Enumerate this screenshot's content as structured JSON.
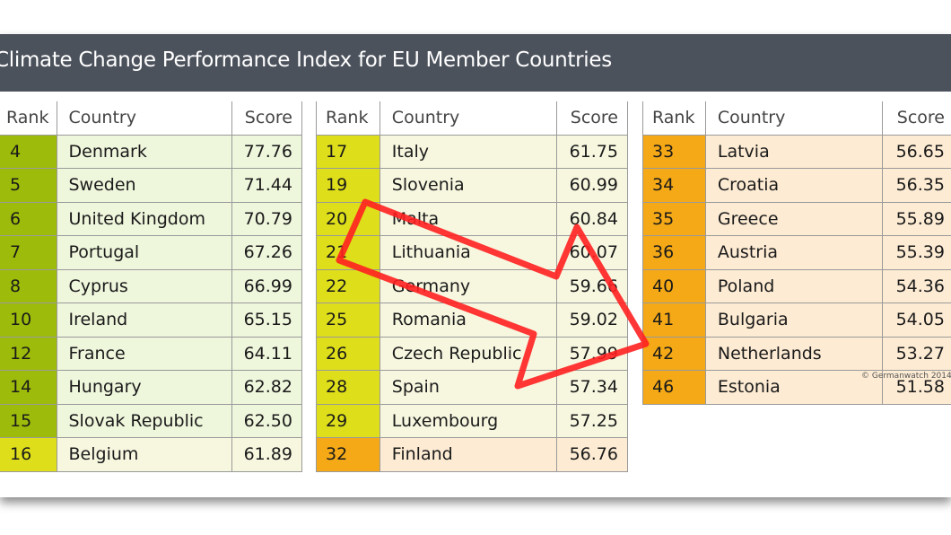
{
  "title": "Climate Change Performance Index for EU Member Countries",
  "headers": {
    "rank": "Rank",
    "country": "Country",
    "score": "Score"
  },
  "colors": {
    "title_bg": "#4c525c",
    "green": "#9dbb0a",
    "green_bg": "#eef6dc",
    "yellow": "#dede1a",
    "yellow_bg": "#f7f7e0",
    "orange": "#f5a916",
    "orange_bg": "#fdebd3",
    "arrow": "#ff2020"
  },
  "tables": [
    [
      {
        "rank": "4",
        "country": "Denmark",
        "score": "77.76",
        "tier": "green"
      },
      {
        "rank": "5",
        "country": "Sweden",
        "score": "71.44",
        "tier": "green"
      },
      {
        "rank": "6",
        "country": "United Kingdom",
        "score": "70.79",
        "tier": "green"
      },
      {
        "rank": "7",
        "country": "Portugal",
        "score": "67.26",
        "tier": "green"
      },
      {
        "rank": "8",
        "country": "Cyprus",
        "score": "66.99",
        "tier": "green"
      },
      {
        "rank": "10",
        "country": "Ireland",
        "score": "65.15",
        "tier": "green"
      },
      {
        "rank": "12",
        "country": "France",
        "score": "64.11",
        "tier": "green"
      },
      {
        "rank": "14",
        "country": "Hungary",
        "score": "62.82",
        "tier": "green"
      },
      {
        "rank": "15",
        "country": "Slovak Republic",
        "score": "62.50",
        "tier": "green"
      },
      {
        "rank": "16",
        "country": "Belgium",
        "score": "61.89",
        "tier": "yellow"
      }
    ],
    [
      {
        "rank": "17",
        "country": "Italy",
        "score": "61.75",
        "tier": "yellow"
      },
      {
        "rank": "19",
        "country": "Slovenia",
        "score": "60.99",
        "tier": "yellow"
      },
      {
        "rank": "20",
        "country": "Malta",
        "score": "60.84",
        "tier": "yellow"
      },
      {
        "rank": "21",
        "country": "Lithuania",
        "score": "60.07",
        "tier": "yellow"
      },
      {
        "rank": "22",
        "country": "Germany",
        "score": "59.66",
        "tier": "yellow"
      },
      {
        "rank": "25",
        "country": "Romania",
        "score": "59.02",
        "tier": "yellow"
      },
      {
        "rank": "26",
        "country": "Czech Republic",
        "score": "57.99",
        "tier": "yellow"
      },
      {
        "rank": "28",
        "country": "Spain",
        "score": "57.34",
        "tier": "yellow"
      },
      {
        "rank": "29",
        "country": "Luxembourg",
        "score": "57.25",
        "tier": "yellow"
      },
      {
        "rank": "32",
        "country": "Finland",
        "score": "56.76",
        "tier": "orange"
      }
    ],
    [
      {
        "rank": "33",
        "country": "Latvia",
        "score": "56.65",
        "tier": "orange"
      },
      {
        "rank": "34",
        "country": "Croatia",
        "score": "56.35",
        "tier": "orange"
      },
      {
        "rank": "35",
        "country": "Greece",
        "score": "55.89",
        "tier": "orange"
      },
      {
        "rank": "36",
        "country": "Austria",
        "score": "55.39",
        "tier": "orange"
      },
      {
        "rank": "40",
        "country": "Poland",
        "score": "54.36",
        "tier": "orange"
      },
      {
        "rank": "41",
        "country": "Bulgaria",
        "score": "54.05",
        "tier": "orange"
      },
      {
        "rank": "42",
        "country": "Netherlands",
        "score": "53.27",
        "tier": "orange"
      },
      {
        "rank": "46",
        "country": "Estonia",
        "score": "51.58",
        "tier": "orange"
      }
    ]
  ],
  "copyright": "© Germanwatch 2014"
}
